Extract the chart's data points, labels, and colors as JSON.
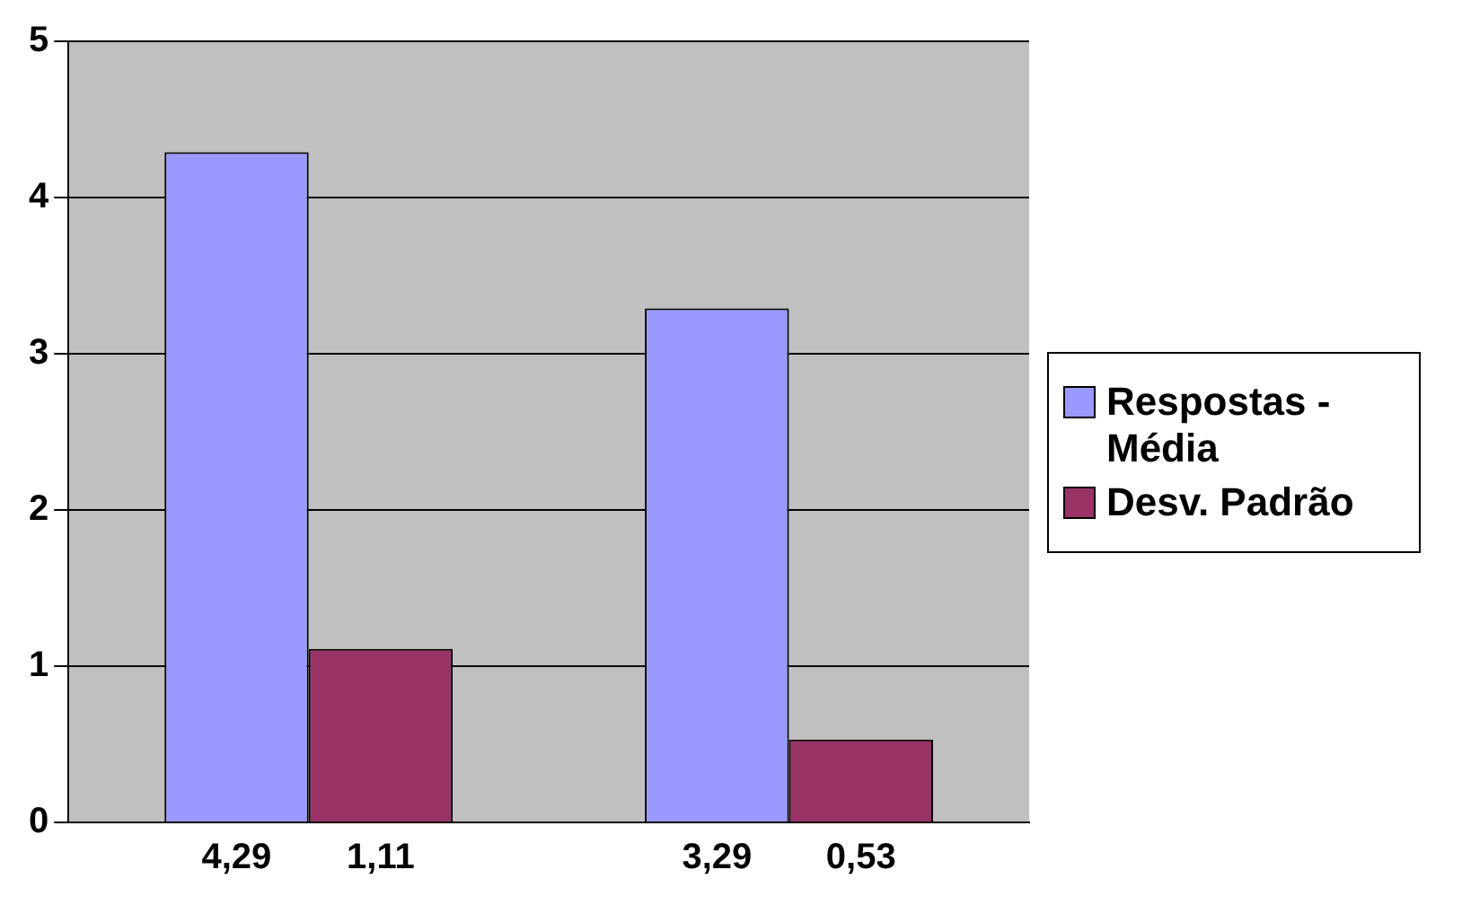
{
  "chart_data": {
    "type": "bar",
    "categories": [
      null,
      null
    ],
    "series": [
      {
        "name": "Respostas - Média",
        "color": "#9999ff",
        "values": [
          4.29,
          3.29
        ],
        "value_labels": [
          "4,29",
          "3,29"
        ]
      },
      {
        "name": "Desv. Padrão",
        "color": "#993366",
        "values": [
          1.11,
          0.53
        ],
        "value_labels": [
          "1,11",
          "0,53"
        ]
      }
    ],
    "ylim": [
      0,
      5
    ],
    "yticks": [
      0,
      1,
      2,
      3,
      4,
      5
    ],
    "grid": "y",
    "legend": "right"
  }
}
